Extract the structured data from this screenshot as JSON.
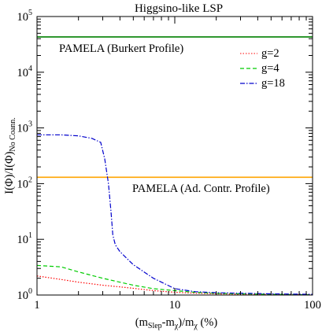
{
  "chart_data": {
    "type": "line",
    "title": "Higgsino-like LSP",
    "xlabel_main": "(m",
    "xlabel_sub1": "Slep",
    "xlabel_mid": "-m",
    "xlabel_sub2": "χ",
    "xlabel_mid2": ")/m",
    "xlabel_sub3": "χ",
    "xlabel_end": " (%)",
    "ylabel_main": "I(Φ)/I(Φ)",
    "ylabel_sub": "No Coann.",
    "x_scale": "log",
    "y_scale": "log",
    "xlim": [
      1,
      100
    ],
    "ylim": [
      1,
      100000
    ],
    "x_ticks": [
      {
        "value": 1,
        "label": "1"
      },
      {
        "value": 10,
        "label": "10"
      },
      {
        "value": 100,
        "label": "100"
      }
    ],
    "y_ticks": [
      {
        "value": 1,
        "base": "10",
        "exp": "0"
      },
      {
        "value": 10,
        "base": "10",
        "exp": "1"
      },
      {
        "value": 100,
        "base": "10",
        "exp": "2"
      },
      {
        "value": 1000,
        "base": "10",
        "exp": "3"
      },
      {
        "value": 10000,
        "base": "10",
        "exp": "4"
      },
      {
        "value": 100000,
        "base": "10",
        "exp": "5"
      }
    ],
    "reference_lines": [
      {
        "label": "PAMELA (Burkert Profile)",
        "value": 43000,
        "color": "#008000"
      },
      {
        "label": "PAMELA (Ad. Contr. Profile)",
        "value": 130,
        "color": "#ffa500"
      }
    ],
    "series": [
      {
        "name": "g=2",
        "color": "#ff0000",
        "style": "dotted",
        "x": [
          1,
          1.5,
          2,
          3,
          4,
          5,
          7,
          10,
          14,
          20,
          50,
          100
        ],
        "y": [
          2.2,
          1.9,
          1.7,
          1.5,
          1.4,
          1.32,
          1.2,
          1.12,
          1.08,
          1.05,
          1.02,
          1.01
        ]
      },
      {
        "name": "g=4",
        "color": "#00cc00",
        "style": "dashed",
        "x": [
          1,
          1.5,
          2,
          3,
          4,
          5,
          7,
          10,
          14,
          20,
          50,
          100
        ],
        "y": [
          3.4,
          3.2,
          2.6,
          2.0,
          1.7,
          1.5,
          1.3,
          1.2,
          1.12,
          1.07,
          1.03,
          1.01
        ]
      },
      {
        "name": "g=18",
        "color": "#0000cc",
        "style": "dashdot",
        "x": [
          1,
          1.5,
          2,
          2.5,
          2.9,
          3.1,
          3.3,
          3.45,
          3.55,
          3.7,
          4,
          5,
          7,
          10,
          14,
          20,
          50,
          100
        ],
        "y": [
          750,
          750,
          720,
          650,
          550,
          280,
          100,
          30,
          12,
          8,
          6,
          3.5,
          2,
          1.3,
          1.15,
          1.1,
          1.05,
          1.03
        ]
      }
    ],
    "legend_position": "top-right",
    "grid": false
  }
}
